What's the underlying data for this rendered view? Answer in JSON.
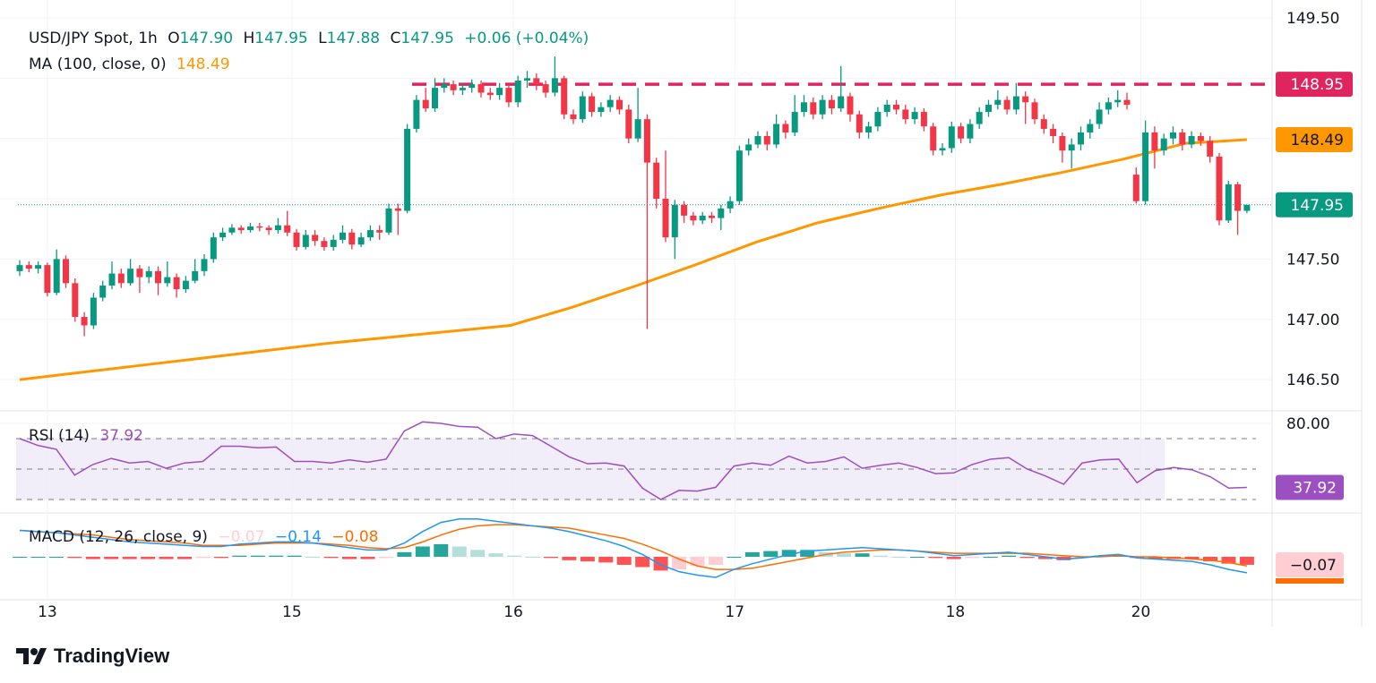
{
  "header": {
    "symbol": "USD/JPY Spot, 1h",
    "o_label": "O",
    "o": "147.90",
    "h_label": "H",
    "h": "147.95",
    "l_label": "L",
    "l": "147.88",
    "c_label": "C",
    "c": "147.95",
    "change": "+0.06 (+0.04%)",
    "ma_label": "MA (100, close, 0)",
    "ma_value": "148.49"
  },
  "rsi_legend": {
    "label": "RSI (14)",
    "value": "37.92"
  },
  "macd_legend": {
    "label": "MACD (12, 26, close, 9)",
    "hist": "−0.07",
    "macd": "−0.14",
    "signal": "−0.08"
  },
  "logo": {
    "text": "TradingView"
  },
  "colors": {
    "up": "#089981",
    "down": "#f23645",
    "ma": "#ff9800",
    "resistance": "#e0245e",
    "rsi": "#9c4fc0",
    "macd": "#2196f3",
    "signal": "#ff6d00",
    "hist_up_strong": "#26a69a",
    "hist_up_weak": "#b2dfdb",
    "hist_down_strong": "#ff5252",
    "hist_down_weak": "#ffcdd2"
  },
  "chart_data": [
    {
      "type": "candlestick",
      "title": "USD/JPY Spot, 1h",
      "ylim": [
        146.3,
        149.5
      ],
      "y_ticks": [
        "149.50",
        "147.50",
        "147.00",
        "146.50"
      ],
      "x_labels": [
        "13",
        "15",
        "16",
        "17",
        "18",
        "20"
      ],
      "grid": true,
      "badges": {
        "resistance": "148.95",
        "ma": "148.49",
        "last": "147.95"
      },
      "resistance_level": 148.95,
      "last_price": 147.95,
      "open": [
        147.4,
        147.45,
        147.42,
        147.45,
        147.22,
        147.5,
        147.3,
        147.02,
        146.95,
        147.18,
        147.28,
        147.38,
        147.3,
        147.42,
        147.35,
        147.4,
        147.3,
        147.35,
        147.25,
        147.32,
        147.4,
        147.5,
        147.68,
        147.72,
        147.76,
        147.74,
        147.77,
        147.76,
        147.74,
        147.78,
        147.72,
        147.6,
        147.7,
        147.65,
        147.6,
        147.66,
        147.72,
        147.62,
        147.68,
        147.74,
        147.72,
        147.92,
        147.9,
        148.58,
        148.82,
        148.75,
        148.92,
        148.95,
        148.9,
        148.92,
        148.95,
        148.88,
        148.86,
        148.92,
        148.8,
        148.98,
        149.0,
        148.95,
        148.88,
        149.0,
        148.7,
        148.66,
        148.85,
        148.72,
        148.76,
        148.82,
        148.74,
        148.5,
        148.66,
        148.3,
        148.0,
        147.68,
        147.95,
        147.86,
        147.82,
        147.86,
        147.84,
        147.92,
        147.98,
        148.4,
        148.45,
        148.52,
        148.45,
        148.62,
        148.55,
        148.72,
        148.8,
        148.7,
        148.82,
        148.75,
        148.85,
        148.7,
        148.55,
        148.6,
        148.72,
        148.78,
        148.74,
        148.66,
        148.72,
        148.6,
        148.4,
        148.42,
        148.6,
        148.5,
        148.62,
        148.72,
        148.78,
        148.82,
        148.74,
        148.85,
        148.8,
        148.66,
        148.58,
        148.52,
        148.4,
        148.45,
        148.55,
        148.62,
        148.74,
        148.8,
        148.82,
        148.2,
        147.98,
        148.55,
        148.4,
        148.5,
        148.55,
        148.45,
        148.52,
        148.48,
        148.35,
        147.82,
        148.12,
        147.9
      ],
      "high": [
        147.49,
        147.48,
        147.48,
        147.47,
        147.58,
        147.53,
        147.34,
        147.06,
        147.22,
        147.32,
        147.48,
        147.42,
        147.5,
        147.45,
        147.44,
        147.44,
        147.48,
        147.38,
        147.36,
        147.5,
        147.54,
        147.72,
        147.76,
        147.79,
        147.78,
        147.8,
        147.8,
        147.78,
        147.84,
        147.9,
        147.75,
        147.74,
        147.74,
        147.68,
        147.7,
        147.78,
        147.75,
        147.72,
        147.78,
        147.78,
        147.96,
        147.96,
        148.62,
        148.86,
        148.92,
        149.0,
        149.0,
        148.98,
        148.96,
        148.99,
        148.98,
        148.92,
        148.96,
        148.95,
        149.02,
        149.06,
        149.04,
        148.98,
        149.18,
        149.02,
        148.74,
        148.89,
        148.88,
        148.8,
        148.86,
        148.85,
        148.78,
        148.92,
        148.7,
        148.34,
        148.4,
        147.99,
        147.98,
        147.89,
        147.89,
        147.89,
        147.95,
        148.02,
        148.44,
        148.5,
        148.56,
        148.56,
        148.7,
        148.65,
        148.86,
        148.86,
        148.84,
        148.86,
        148.86,
        149.1,
        148.88,
        148.73,
        148.64,
        148.76,
        148.82,
        148.82,
        148.78,
        148.76,
        148.75,
        148.63,
        148.46,
        148.64,
        148.63,
        148.66,
        148.76,
        148.82,
        148.9,
        148.85,
        148.96,
        148.89,
        148.83,
        148.7,
        148.62,
        148.55,
        148.5,
        148.6,
        148.66,
        148.8,
        148.84,
        148.9,
        148.88,
        148.26,
        148.65,
        148.6,
        148.54,
        148.6,
        148.58,
        148.56,
        148.55,
        148.52,
        148.38,
        148.15,
        148.14,
        147.95
      ],
      "low": [
        147.36,
        147.39,
        147.38,
        147.19,
        147.2,
        147.26,
        146.98,
        146.86,
        146.92,
        147.15,
        147.25,
        147.26,
        147.28,
        147.22,
        147.3,
        147.2,
        147.27,
        147.18,
        147.22,
        147.3,
        147.36,
        147.47,
        147.65,
        147.7,
        147.71,
        147.72,
        147.73,
        147.7,
        147.71,
        147.69,
        147.57,
        147.58,
        147.61,
        147.57,
        147.57,
        147.63,
        147.58,
        147.6,
        147.65,
        147.66,
        147.7,
        147.7,
        147.88,
        148.55,
        148.72,
        148.72,
        148.88,
        148.86,
        148.86,
        148.88,
        148.84,
        148.82,
        148.82,
        148.76,
        148.76,
        148.92,
        148.9,
        148.84,
        148.85,
        148.66,
        148.62,
        148.63,
        148.68,
        148.68,
        148.72,
        148.7,
        148.46,
        148.47,
        146.92,
        147.92,
        147.64,
        147.5,
        147.8,
        147.78,
        147.79,
        147.8,
        147.74,
        147.88,
        147.95,
        148.36,
        148.42,
        148.4,
        148.42,
        148.5,
        148.52,
        148.68,
        148.66,
        148.66,
        148.7,
        148.72,
        148.64,
        148.5,
        148.5,
        148.56,
        148.68,
        148.7,
        148.62,
        148.62,
        148.56,
        148.36,
        148.36,
        148.38,
        148.46,
        148.46,
        148.58,
        148.68,
        148.74,
        148.7,
        148.7,
        148.62,
        148.62,
        148.54,
        148.46,
        148.3,
        148.25,
        148.4,
        148.5,
        148.58,
        148.7,
        148.76,
        148.74,
        147.96,
        147.95,
        148.25,
        148.36,
        148.45,
        148.4,
        148.42,
        148.44,
        148.3,
        147.78,
        147.8,
        147.7,
        147.88
      ],
      "close": [
        147.45,
        147.42,
        147.45,
        147.22,
        147.5,
        147.3,
        147.02,
        146.95,
        147.18,
        147.28,
        147.38,
        147.3,
        147.42,
        147.35,
        147.4,
        147.3,
        147.35,
        147.25,
        147.32,
        147.4,
        147.5,
        147.68,
        147.72,
        147.76,
        147.74,
        147.77,
        147.76,
        147.74,
        147.78,
        147.72,
        147.6,
        147.7,
        147.65,
        147.6,
        147.66,
        147.72,
        147.62,
        147.68,
        147.74,
        147.72,
        147.92,
        147.9,
        148.58,
        148.82,
        148.75,
        148.92,
        148.95,
        148.9,
        148.92,
        148.95,
        148.88,
        148.86,
        148.92,
        148.8,
        148.98,
        149.0,
        148.95,
        148.88,
        149.0,
        148.7,
        148.66,
        148.85,
        148.72,
        148.76,
        148.82,
        148.74,
        148.5,
        148.66,
        148.3,
        148.0,
        147.68,
        147.95,
        147.86,
        147.82,
        147.86,
        147.84,
        147.92,
        147.98,
        148.4,
        148.45,
        148.52,
        148.45,
        148.62,
        148.55,
        148.72,
        148.8,
        148.7,
        148.82,
        148.75,
        148.85,
        148.7,
        148.55,
        148.6,
        148.72,
        148.78,
        148.74,
        148.66,
        148.72,
        148.6,
        148.4,
        148.42,
        148.6,
        148.5,
        148.62,
        148.72,
        148.78,
        148.82,
        148.74,
        148.85,
        148.8,
        148.66,
        148.58,
        148.52,
        148.4,
        148.45,
        148.55,
        148.62,
        148.74,
        148.8,
        148.82,
        148.78,
        147.98,
        148.55,
        148.4,
        148.5,
        148.55,
        148.45,
        148.52,
        148.48,
        148.35,
        147.82,
        148.12,
        147.9,
        147.95
      ],
      "ma100": [
        146.5,
        146.56,
        146.62,
        146.68,
        146.74,
        146.8,
        146.85,
        146.9,
        146.95,
        147.1,
        147.27,
        147.45,
        147.64,
        147.8,
        147.92,
        148.03,
        148.12,
        148.22,
        148.33,
        148.46,
        148.49
      ]
    },
    {
      "type": "line",
      "title": "RSI (14)",
      "ylim": [
        20,
        85
      ],
      "levels": [
        70,
        50,
        30
      ],
      "y_ticks": [
        "80.00"
      ],
      "badge": "37.92",
      "values": [
        70,
        65.5,
        63,
        46,
        53,
        57,
        54,
        55,
        50.5,
        54,
        55,
        65,
        65,
        64,
        64.5,
        55,
        55,
        54,
        56,
        54.5,
        56.5,
        75,
        81,
        80,
        78,
        77.5,
        70,
        73,
        72,
        65,
        58,
        53.5,
        54,
        52,
        37.5,
        30,
        36,
        35.5,
        38,
        52,
        54,
        52.5,
        58.5,
        54,
        55,
        58,
        50.5,
        52.5,
        54,
        51,
        47,
        47.5,
        53,
        56.5,
        57.5,
        50,
        45.5,
        40,
        54,
        56,
        56.5,
        41,
        49,
        51,
        49.5,
        45,
        37.5,
        37.92
      ]
    },
    {
      "type": "line+bar",
      "title": "MACD (12, 26, close, 9)",
      "badge": "−0.07",
      "macd": [
        0.23,
        0.22,
        0.21,
        0.19,
        0.17,
        0.15,
        0.13,
        0.12,
        0.11,
        0.1,
        0.09,
        0.09,
        0.11,
        0.12,
        0.13,
        0.13,
        0.12,
        0.1,
        0.08,
        0.06,
        0.06,
        0.12,
        0.22,
        0.3,
        0.33,
        0.33,
        0.31,
        0.29,
        0.27,
        0.25,
        0.22,
        0.18,
        0.14,
        0.09,
        0.02,
        -0.07,
        -0.13,
        -0.16,
        -0.18,
        -0.11,
        -0.06,
        -0.02,
        0.02,
        0.05,
        0.06,
        0.07,
        0.08,
        0.07,
        0.06,
        0.05,
        0.03,
        0.01,
        0.02,
        0.03,
        0.04,
        0.02,
        0.0,
        -0.02,
        -0.01,
        0.01,
        0.02,
        -0.01,
        -0.02,
        -0.03,
        -0.04,
        -0.07,
        -0.11,
        -0.14
      ],
      "signal": [
        0.23,
        0.22,
        0.21,
        0.2,
        0.19,
        0.17,
        0.15,
        0.14,
        0.13,
        0.12,
        0.1,
        0.1,
        0.1,
        0.11,
        0.12,
        0.12,
        0.12,
        0.11,
        0.1,
        0.08,
        0.07,
        0.08,
        0.13,
        0.19,
        0.24,
        0.27,
        0.28,
        0.28,
        0.27,
        0.26,
        0.25,
        0.22,
        0.19,
        0.16,
        0.11,
        0.05,
        -0.02,
        -0.08,
        -0.11,
        -0.11,
        -0.1,
        -0.07,
        -0.04,
        -0.01,
        0.02,
        0.04,
        0.05,
        0.06,
        0.06,
        0.05,
        0.04,
        0.03,
        0.03,
        0.03,
        0.03,
        0.03,
        0.02,
        0.01,
        0.0,
        0.0,
        0.01,
        0.0,
        0.0,
        -0.01,
        -0.02,
        -0.03,
        -0.05,
        -0.08
      ],
      "histogram": [
        0.0,
        0.0,
        0.0,
        -0.01,
        -0.02,
        -0.02,
        -0.02,
        -0.02,
        -0.02,
        -0.02,
        -0.01,
        -0.01,
        0.01,
        0.01,
        0.01,
        0.01,
        0.0,
        -0.01,
        -0.02,
        -0.02,
        -0.01,
        0.04,
        0.09,
        0.11,
        0.09,
        0.06,
        0.03,
        0.01,
        0.0,
        -0.01,
        -0.03,
        -0.04,
        -0.05,
        -0.07,
        -0.09,
        -0.12,
        -0.11,
        -0.08,
        -0.07,
        0.0,
        0.04,
        0.05,
        0.06,
        0.06,
        0.04,
        0.03,
        0.03,
        0.01,
        0.0,
        0.0,
        -0.01,
        -0.02,
        -0.01,
        0.0,
        0.01,
        -0.01,
        -0.02,
        -0.03,
        -0.01,
        0.01,
        0.01,
        -0.01,
        -0.02,
        -0.02,
        -0.02,
        -0.04,
        -0.06,
        -0.07
      ]
    }
  ]
}
